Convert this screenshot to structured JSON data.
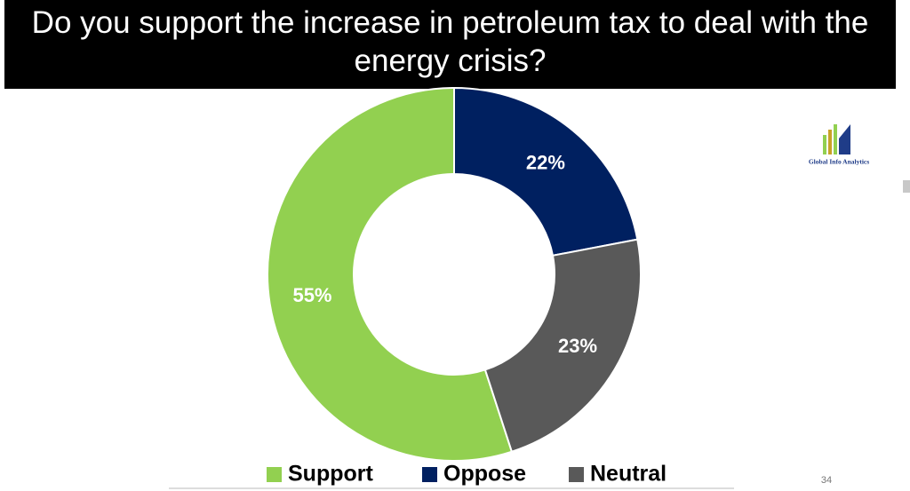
{
  "chart_data": {
    "type": "donut",
    "title": "Do you support the increase in petroleum tax to deal with the energy crisis?",
    "categories": [
      "Support",
      "Oppose",
      "Neutral"
    ],
    "values": [
      55,
      22,
      23
    ],
    "value_labels": [
      "55%",
      "22%",
      "23%"
    ],
    "colors": [
      "#92d050",
      "#002060",
      "#595959"
    ],
    "legend": "bottom",
    "logo": "Global Info Analytics",
    "page_number": "34"
  }
}
